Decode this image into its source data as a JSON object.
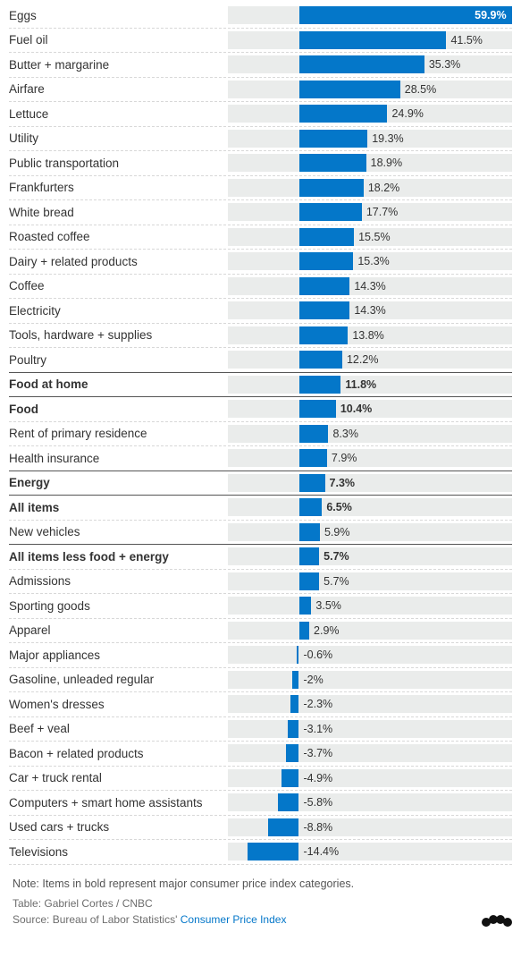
{
  "chart": {
    "type": "bar",
    "domain_min": -20,
    "domain_max": 60,
    "track_color": "#eaeceb",
    "bar_color": "#0477c9",
    "text_color": "#333333",
    "row_border_light": "#d8d8d8",
    "row_border_dark": "#555555",
    "label_fontsize": 13.5,
    "value_fontsize": 12.5,
    "rows": [
      {
        "label": "Eggs",
        "value": 59.9,
        "display": "59.9%",
        "bold": false,
        "value_inside": true,
        "dark_border": false
      },
      {
        "label": "Fuel oil",
        "value": 41.5,
        "display": "41.5%",
        "bold": false,
        "value_inside": false,
        "dark_border": false
      },
      {
        "label": "Butter + margarine",
        "value": 35.3,
        "display": "35.3%",
        "bold": false,
        "value_inside": false,
        "dark_border": false
      },
      {
        "label": "Airfare",
        "value": 28.5,
        "display": "28.5%",
        "bold": false,
        "value_inside": false,
        "dark_border": false
      },
      {
        "label": "Lettuce",
        "value": 24.9,
        "display": "24.9%",
        "bold": false,
        "value_inside": false,
        "dark_border": false
      },
      {
        "label": "Utility",
        "value": 19.3,
        "display": "19.3%",
        "bold": false,
        "value_inside": false,
        "dark_border": false
      },
      {
        "label": "Public transportation",
        "value": 18.9,
        "display": "18.9%",
        "bold": false,
        "value_inside": false,
        "dark_border": false
      },
      {
        "label": "Frankfurters",
        "value": 18.2,
        "display": "18.2%",
        "bold": false,
        "value_inside": false,
        "dark_border": false
      },
      {
        "label": "White bread",
        "value": 17.7,
        "display": "17.7%",
        "bold": false,
        "value_inside": false,
        "dark_border": false
      },
      {
        "label": "Roasted coffee",
        "value": 15.5,
        "display": "15.5%",
        "bold": false,
        "value_inside": false,
        "dark_border": false
      },
      {
        "label": "Dairy + related products",
        "value": 15.3,
        "display": "15.3%",
        "bold": false,
        "value_inside": false,
        "dark_border": false
      },
      {
        "label": "Coffee",
        "value": 14.3,
        "display": "14.3%",
        "bold": false,
        "value_inside": false,
        "dark_border": false
      },
      {
        "label": "Electricity",
        "value": 14.3,
        "display": "14.3%",
        "bold": false,
        "value_inside": false,
        "dark_border": false
      },
      {
        "label": "Tools, hardware + supplies",
        "value": 13.8,
        "display": "13.8%",
        "bold": false,
        "value_inside": false,
        "dark_border": false
      },
      {
        "label": "Poultry",
        "value": 12.2,
        "display": "12.2%",
        "bold": false,
        "value_inside": false,
        "dark_border": true
      },
      {
        "label": "Food at home",
        "value": 11.8,
        "display": "11.8%",
        "bold": true,
        "value_inside": false,
        "dark_border": true
      },
      {
        "label": "Food",
        "value": 10.4,
        "display": "10.4%",
        "bold": true,
        "value_inside": false,
        "dark_border": false
      },
      {
        "label": "Rent of primary residence",
        "value": 8.3,
        "display": "8.3%",
        "bold": false,
        "value_inside": false,
        "dark_border": false
      },
      {
        "label": "Health insurance",
        "value": 7.9,
        "display": "7.9%",
        "bold": false,
        "value_inside": false,
        "dark_border": true
      },
      {
        "label": "Energy",
        "value": 7.3,
        "display": "7.3%",
        "bold": true,
        "value_inside": false,
        "dark_border": true
      },
      {
        "label": "All items",
        "value": 6.5,
        "display": "6.5%",
        "bold": true,
        "value_inside": false,
        "dark_border": false
      },
      {
        "label": "New vehicles",
        "value": 5.9,
        "display": "5.9%",
        "bold": false,
        "value_inside": false,
        "dark_border": true
      },
      {
        "label": "All items less food + energy",
        "value": 5.7,
        "display": "5.7%",
        "bold": true,
        "value_inside": false,
        "dark_border": false
      },
      {
        "label": "Admissions",
        "value": 5.7,
        "display": "5.7%",
        "bold": false,
        "value_inside": false,
        "dark_border": false
      },
      {
        "label": "Sporting goods",
        "value": 3.5,
        "display": "3.5%",
        "bold": false,
        "value_inside": false,
        "dark_border": false
      },
      {
        "label": "Apparel",
        "value": 2.9,
        "display": "2.9%",
        "bold": false,
        "value_inside": false,
        "dark_border": false
      },
      {
        "label": "Major appliances",
        "value": -0.6,
        "display": "-0.6%",
        "bold": false,
        "value_inside": false,
        "dark_border": false
      },
      {
        "label": "Gasoline, unleaded regular",
        "value": -2.0,
        "display": "-2%",
        "bold": false,
        "value_inside": false,
        "dark_border": false
      },
      {
        "label": "Women's dresses",
        "value": -2.3,
        "display": "-2.3%",
        "bold": false,
        "value_inside": false,
        "dark_border": false
      },
      {
        "label": "Beef + veal",
        "value": -3.1,
        "display": "-3.1%",
        "bold": false,
        "value_inside": false,
        "dark_border": false
      },
      {
        "label": "Bacon + related products",
        "value": -3.7,
        "display": "-3.7%",
        "bold": false,
        "value_inside": false,
        "dark_border": false
      },
      {
        "label": "Car + truck rental",
        "value": -4.9,
        "display": "-4.9%",
        "bold": false,
        "value_inside": false,
        "dark_border": false
      },
      {
        "label": "Computers + smart home assistants",
        "value": -5.8,
        "display": "-5.8%",
        "bold": false,
        "value_inside": false,
        "dark_border": false
      },
      {
        "label": "Used cars + trucks",
        "value": -8.8,
        "display": "-8.8%",
        "bold": false,
        "value_inside": false,
        "dark_border": false
      },
      {
        "label": "Televisions",
        "value": -14.4,
        "display": "-14.4%",
        "bold": false,
        "value_inside": false,
        "dark_border": false
      }
    ]
  },
  "footer": {
    "note": "Note: Items in bold represent major consumer price index categories.",
    "table_credit": "Table: Gabriel Cortes / CNBC",
    "source_prefix": "Source: Bureau of Labor Statistics' ",
    "source_link_text": "Consumer Price Index",
    "logo_text": "♣♣♣"
  }
}
